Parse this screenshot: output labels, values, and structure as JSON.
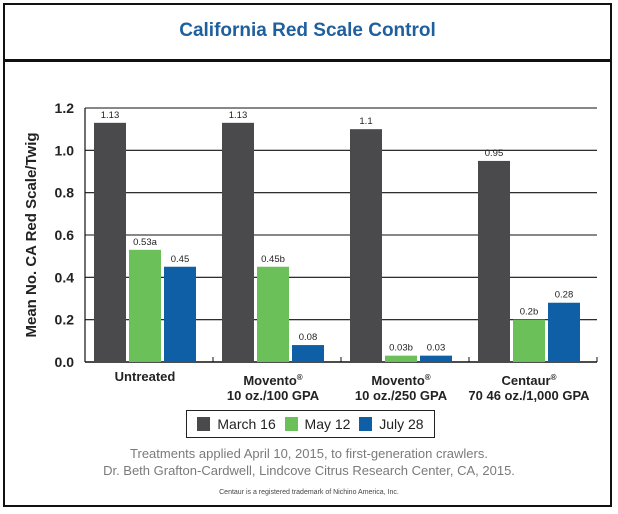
{
  "chart_data": {
    "type": "bar",
    "title": "California Red Scale Control",
    "xlabel": "",
    "ylabel": "Mean No. CA Red Scale/Twig",
    "ylim": [
      0,
      1.2
    ],
    "yticks": [
      "0.0",
      "0.2",
      "0.4",
      "0.6",
      "0.8",
      "1.0",
      "1.2"
    ],
    "grid": true,
    "legend_position": "bottom",
    "categories": [
      {
        "name": "Untreated",
        "line2": ""
      },
      {
        "name": "Movento",
        "reg": "®",
        "line2": "10 oz./100 GPA"
      },
      {
        "name": "Movento",
        "reg": "®",
        "line2": "10 oz./250 GPA"
      },
      {
        "name": "Centaur",
        "reg": "®",
        "line2": "70 46 oz./1,000 GPA"
      }
    ],
    "series": [
      {
        "name": "March 16",
        "color": "#4a4a4c",
        "values": [
          1.13,
          1.13,
          1.1,
          0.95
        ],
        "labels": [
          "1.13",
          "1.13",
          "1.1",
          "0.95"
        ]
      },
      {
        "name": "May 12",
        "color": "#6cc05a",
        "values": [
          0.53,
          0.45,
          0.03,
          0.2
        ],
        "labels": [
          "0.53a",
          "0.45b",
          "0.03b",
          "0.2b"
        ]
      },
      {
        "name": "July 28",
        "color": "#0e5fa6",
        "values": [
          0.45,
          0.08,
          0.03,
          0.28
        ],
        "labels": [
          "0.45",
          "0.08",
          "0.03",
          "0.28"
        ]
      }
    ]
  },
  "notes": {
    "line1": "Treatments applied April 10, 2015, to first-generation crawlers.",
    "line2": "Dr. Beth Grafton-Cardwell, Lindcove Citrus Research Center, CA, 2015.",
    "trademark": "Centaur is a registered trademark of Nichino America, Inc."
  }
}
